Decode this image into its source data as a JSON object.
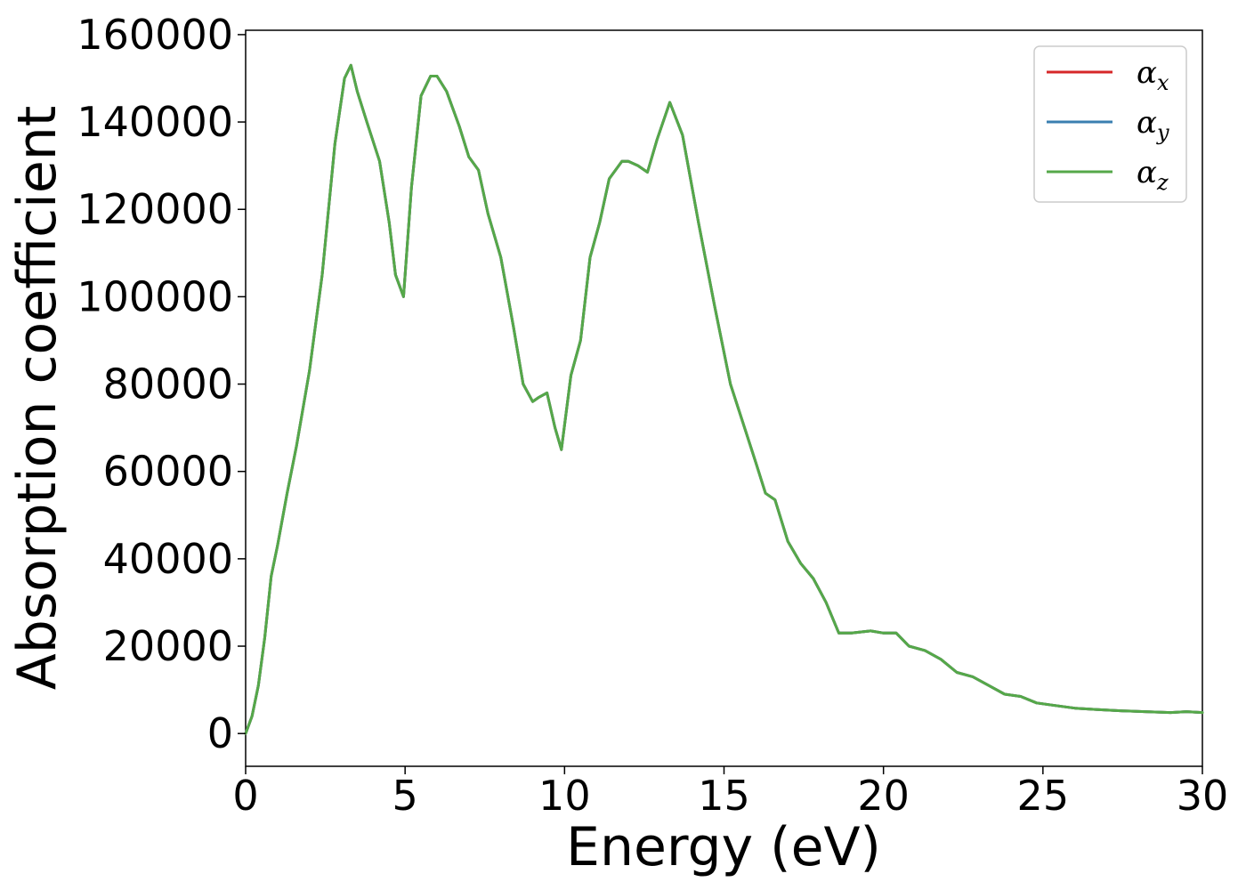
{
  "chart_data": {
    "type": "line",
    "xlabel": "Energy (eV)",
    "ylabel": "Absorption coefficient",
    "xlim": [
      0,
      30
    ],
    "ylim": [
      -7500,
      161000
    ],
    "xticks": [
      0,
      5,
      10,
      15,
      20,
      25,
      30
    ],
    "yticks": [
      0,
      20000,
      40000,
      60000,
      80000,
      100000,
      120000,
      140000,
      160000
    ],
    "xtick_labels": [
      "0",
      "5",
      "10",
      "15",
      "20",
      "25",
      "30"
    ],
    "ytick_labels": [
      "0",
      "20000",
      "40000",
      "60000",
      "80000",
      "100000",
      "120000",
      "140000",
      "160000"
    ],
    "grid": false,
    "legend_position": "top-right",
    "legend": [
      {
        "symbol": "α",
        "sub": "x",
        "color": "#d62728"
      },
      {
        "symbol": "α",
        "sub": "y",
        "color": "#3a7fb0"
      },
      {
        "symbol": "α",
        "sub": "z",
        "color": "#55a849"
      }
    ],
    "x": [
      0,
      0.2,
      0.4,
      0.6,
      0.8,
      1.0,
      1.3,
      1.6,
      2.0,
      2.4,
      2.8,
      3.1,
      3.3,
      3.5,
      3.8,
      4.2,
      4.5,
      4.7,
      4.95,
      5.2,
      5.5,
      5.8,
      6.0,
      6.3,
      6.7,
      7.0,
      7.3,
      7.6,
      8.0,
      8.4,
      8.7,
      9.0,
      9.2,
      9.45,
      9.7,
      9.9,
      10.2,
      10.5,
      10.8,
      11.1,
      11.4,
      11.8,
      12.0,
      12.3,
      12.6,
      12.9,
      13.3,
      13.7,
      14.2,
      14.7,
      15.2,
      15.6,
      16.0,
      16.3,
      16.6,
      17.0,
      17.4,
      17.8,
      18.2,
      18.6,
      19.0,
      19.6,
      20.0,
      20.4,
      20.8,
      21.3,
      21.8,
      22.3,
      22.8,
      23.3,
      23.8,
      24.3,
      24.8,
      25.3,
      26.0,
      26.7,
      27.5,
      28.2,
      29.0,
      29.5,
      30.0
    ],
    "series": [
      {
        "color": "#d62728",
        "values": [
          0,
          4000,
          11000,
          22000,
          36000,
          43000,
          55000,
          66000,
          83000,
          105000,
          135000,
          150000,
          153000,
          147000,
          140000,
          131000,
          117000,
          105000,
          100000,
          125000,
          146000,
          150500,
          150500,
          147000,
          139000,
          132000,
          129000,
          119000,
          109000,
          93000,
          80000,
          76000,
          77000,
          78000,
          70000,
          65000,
          82000,
          90000,
          109000,
          117000,
          127000,
          131000,
          131000,
          130000,
          128500,
          136000,
          144500,
          137000,
          117000,
          98000,
          80000,
          71000,
          62000,
          55000,
          53500,
          44000,
          39000,
          35500,
          30000,
          23000,
          23000,
          23500,
          23000,
          23000,
          20000,
          19000,
          17000,
          14000,
          13000,
          11000,
          9000,
          8500,
          7000,
          6500,
          5800,
          5500,
          5200,
          5000,
          4800,
          5000,
          4800
        ]
      },
      {
        "color": "#3a7fb0",
        "values": [
          0,
          4000,
          11000,
          22000,
          36000,
          43000,
          55000,
          66000,
          83000,
          105000,
          135000,
          150000,
          153000,
          147000,
          140000,
          131000,
          117000,
          105000,
          100000,
          125000,
          146000,
          150500,
          150500,
          147000,
          139000,
          132000,
          129000,
          119000,
          109000,
          93000,
          80000,
          76000,
          77000,
          78000,
          70000,
          65000,
          82000,
          90000,
          109000,
          117000,
          127000,
          131000,
          131000,
          130000,
          128500,
          136000,
          144500,
          137000,
          117000,
          98000,
          80000,
          71000,
          62000,
          55000,
          53500,
          44000,
          39000,
          35500,
          30000,
          23000,
          23000,
          23500,
          23000,
          23000,
          20000,
          19000,
          17000,
          14000,
          13000,
          11000,
          9000,
          8500,
          7000,
          6500,
          5800,
          5500,
          5200,
          5000,
          4800,
          5000,
          4800
        ]
      },
      {
        "color": "#55a849",
        "values": [
          0,
          4000,
          11000,
          22000,
          36000,
          43000,
          55000,
          66000,
          83000,
          105000,
          135000,
          150000,
          153000,
          147000,
          140000,
          131000,
          117000,
          105000,
          100000,
          125000,
          146000,
          150500,
          150500,
          147000,
          139000,
          132000,
          129000,
          119000,
          109000,
          93000,
          80000,
          76000,
          77000,
          78000,
          70000,
          65000,
          82000,
          90000,
          109000,
          117000,
          127000,
          131000,
          131000,
          130000,
          128500,
          136000,
          144500,
          137000,
          117000,
          98000,
          80000,
          71000,
          62000,
          55000,
          53500,
          44000,
          39000,
          35500,
          30000,
          23000,
          23000,
          23500,
          23000,
          23000,
          20000,
          19000,
          17000,
          14000,
          13000,
          11000,
          9000,
          8500,
          7000,
          6500,
          5800,
          5500,
          5200,
          5000,
          4800,
          5000,
          4800
        ]
      }
    ]
  }
}
